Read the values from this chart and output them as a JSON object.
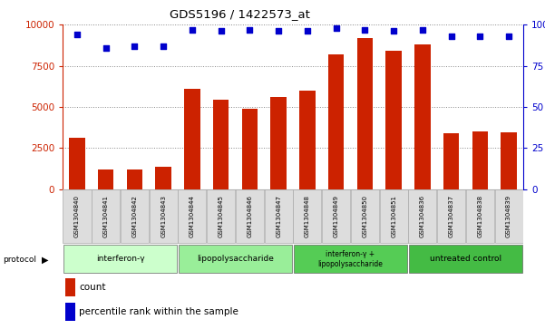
{
  "title": "GDS5196 / 1422573_at",
  "samples": [
    "GSM1304840",
    "GSM1304841",
    "GSM1304842",
    "GSM1304843",
    "GSM1304844",
    "GSM1304845",
    "GSM1304846",
    "GSM1304847",
    "GSM1304848",
    "GSM1304849",
    "GSM1304850",
    "GSM1304851",
    "GSM1304836",
    "GSM1304837",
    "GSM1304838",
    "GSM1304839"
  ],
  "counts": [
    3100,
    1200,
    1200,
    1350,
    6100,
    5450,
    4900,
    5600,
    6000,
    8200,
    9200,
    8400,
    8800,
    3400,
    3500,
    3450
  ],
  "percentile": [
    94,
    86,
    87,
    87,
    97,
    96,
    97,
    96,
    96,
    98,
    97,
    96,
    97,
    93,
    93,
    93
  ],
  "groups": [
    {
      "label": "interferon-γ",
      "start": 0,
      "end": 4,
      "color": "#ccffcc"
    },
    {
      "label": "lipopolysaccharide",
      "start": 4,
      "end": 8,
      "color": "#99ee99"
    },
    {
      "label": "interferon-γ +\nlipopolysaccharide",
      "start": 8,
      "end": 12,
      "color": "#55cc55"
    },
    {
      "label": "untreated control",
      "start": 12,
      "end": 16,
      "color": "#44bb44"
    }
  ],
  "bar_color": "#cc2200",
  "dot_color": "#0000cc",
  "ylim_left": [
    0,
    10000
  ],
  "ylim_right": [
    0,
    100
  ],
  "yticks_left": [
    0,
    2500,
    5000,
    7500,
    10000
  ],
  "yticks_right": [
    0,
    25,
    50,
    75,
    100
  ],
  "grid_color": "#888888",
  "tick_label_color_left": "#cc2200",
  "tick_label_color_right": "#0000cc"
}
